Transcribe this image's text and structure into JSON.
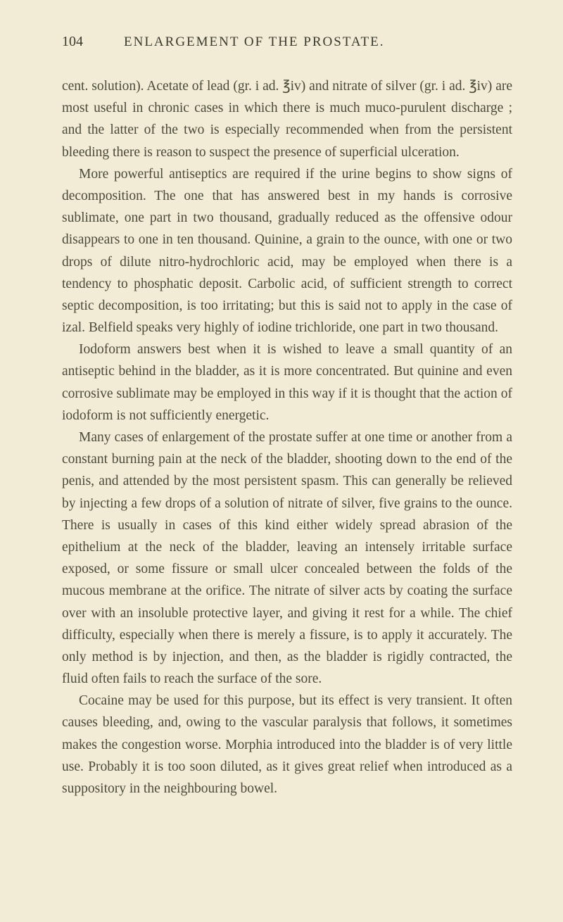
{
  "page": {
    "number": "104",
    "title": "ENLARGEMENT OF THE PROSTATE.",
    "background_color": "#f2ebd5",
    "text_color": "#4a4a3a",
    "font_family": "Georgia, serif",
    "body_fontsize": 19.5,
    "title_fontsize": 19,
    "line_height": 1.6
  },
  "paragraphs": [
    {
      "indent": false,
      "text": "cent. solution). Acetate of lead (gr. i ad. ℥iv) and nitrate of silver (gr. i ad. ℥iv) are most useful in chronic cases in which there is much muco-purulent discharge ; and the latter of the two is especially recommended when from the persistent bleeding there is reason to suspect the presence of superficial ulceration."
    },
    {
      "indent": true,
      "text": "More powerful antiseptics are required if the urine begins to show signs of decomposition. The one that has answered best in my hands is corrosive sublimate, one part in two thousand, gradually reduced as the offensive odour disappears to one in ten thousand. Quinine, a grain to the ounce, with one or two drops of dilute nitro-hydrochloric acid, may be employed when there is a tendency to phosphatic deposit. Carbolic acid, of sufficient strength to correct septic decomposition, is too irritating; but this is said not to apply in the case of izal. Belfield speaks very highly of iodine trichloride, one part in two thousand."
    },
    {
      "indent": true,
      "text": "Iodoform answers best when it is wished to leave a small quantity of an antiseptic behind in the bladder, as it is more concentrated. But quinine and even corrosive sublimate may be employed in this way if it is thought that the action of iodoform is not sufficiently energetic."
    },
    {
      "indent": true,
      "text": "Many cases of enlargement of the prostate suffer at one time or another from a constant burning pain at the neck of the bladder, shooting down to the end of the penis, and attended by the most persistent spasm. This can generally be relieved by injecting a few drops of a solution of nitrate of silver, five grains to the ounce. There is usually in cases of this kind either widely spread abrasion of the epithelium at the neck of the bladder, leaving an intensely irritable surface exposed, or some fissure or small ulcer concealed between the folds of the mucous membrane at the orifice. The nitrate of silver acts by coating the surface over with an insoluble protective layer, and giving it rest for a while. The chief difficulty, especially when there is merely a fissure, is to apply it accurately. The only method is by injection, and then, as the bladder is rigidly contracted, the fluid often fails to reach the surface of the sore."
    },
    {
      "indent": true,
      "text": "Cocaine may be used for this purpose, but its effect is very transient. It often causes bleeding, and, owing to the vascular paralysis that follows, it sometimes makes the congestion worse. Morphia introduced into the bladder is of very little use. Probably it is too soon diluted, as it gives great relief when introduced as a suppository in the neighbouring bowel."
    }
  ]
}
